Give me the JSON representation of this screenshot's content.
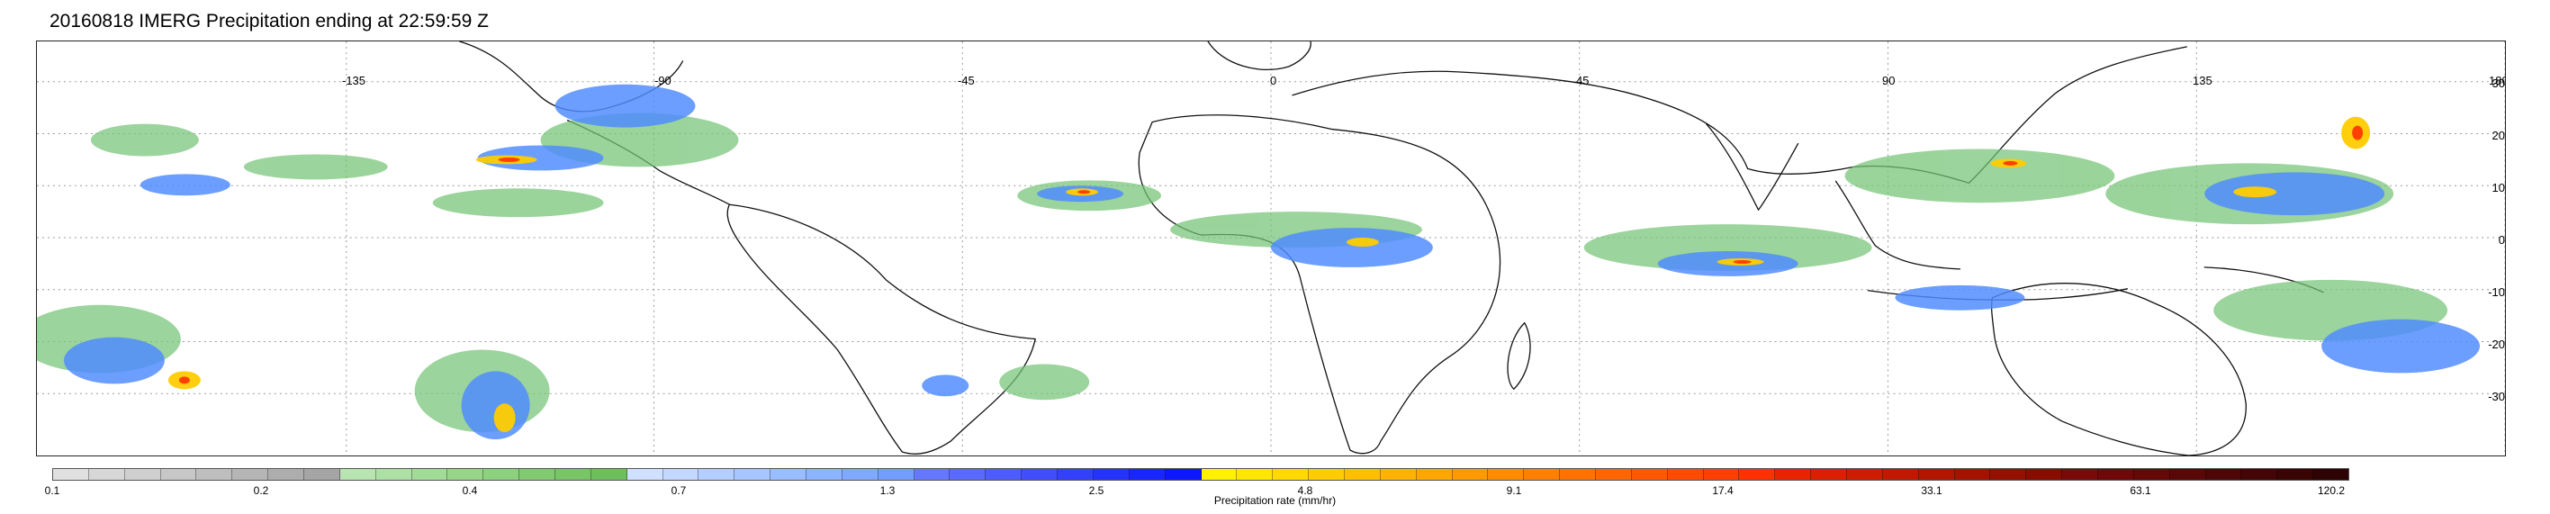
{
  "header": {
    "title": "20160818 IMERG Precipitation ending at 22:59:59 Z"
  },
  "map": {
    "type": "global precipitation map",
    "projection": "equirectangular",
    "lon_ticks": [
      "-135",
      "-90",
      "-45",
      "0",
      "45",
      "90",
      "135",
      "180"
    ],
    "lat_ticks": [
      "30",
      "20",
      "10",
      "0",
      "-10",
      "-20",
      "-30"
    ],
    "features": {
      "coastlines": true,
      "gridlines": "dotted"
    }
  },
  "legend": {
    "title": "Precipitation rate (mm/hr)",
    "labels": [
      "0.1",
      "0.2",
      "0.4",
      "0.7",
      "1.3",
      "2.5",
      "4.8",
      "9.1",
      "17.4",
      "33.1",
      "63.1",
      "120.2"
    ],
    "colors": [
      "#e0e0e0",
      "#d7d7d7",
      "#cfcfcf",
      "#c7c7c7",
      "#bebebe",
      "#b5b5b5",
      "#adadad",
      "#a5a5a5",
      "#b7e4b0",
      "#ade0a4",
      "#a2db97",
      "#98d58a",
      "#8dd07e",
      "#82ca72",
      "#78c566",
      "#6ebf5b",
      "#cfe1ff",
      "#c2d8ff",
      "#b4cfff",
      "#a7c6ff",
      "#99bdff",
      "#8cb3ff",
      "#7fa9ff",
      "#729fff",
      "#6677ff",
      "#5a69ff",
      "#4d5cff",
      "#404eff",
      "#3341ff",
      "#2633ff",
      "#1a26ff",
      "#0d18ff",
      "#fff200",
      "#ffe600",
      "#ffd900",
      "#ffcc00",
      "#ffbf00",
      "#ffb300",
      "#ffa600",
      "#ff9900",
      "#ff8c00",
      "#ff7f00",
      "#ff7200",
      "#ff6500",
      "#ff5800",
      "#ff4b00",
      "#ff3e00",
      "#ff3100",
      "#ea2200",
      "#dc1f00",
      "#ce1c00",
      "#c01900",
      "#b21600",
      "#a41300",
      "#961000",
      "#880d00",
      "#7a0a0a",
      "#6f0909",
      "#640808",
      "#590707",
      "#4e0606",
      "#430505",
      "#380404",
      "#2d0303"
    ]
  }
}
